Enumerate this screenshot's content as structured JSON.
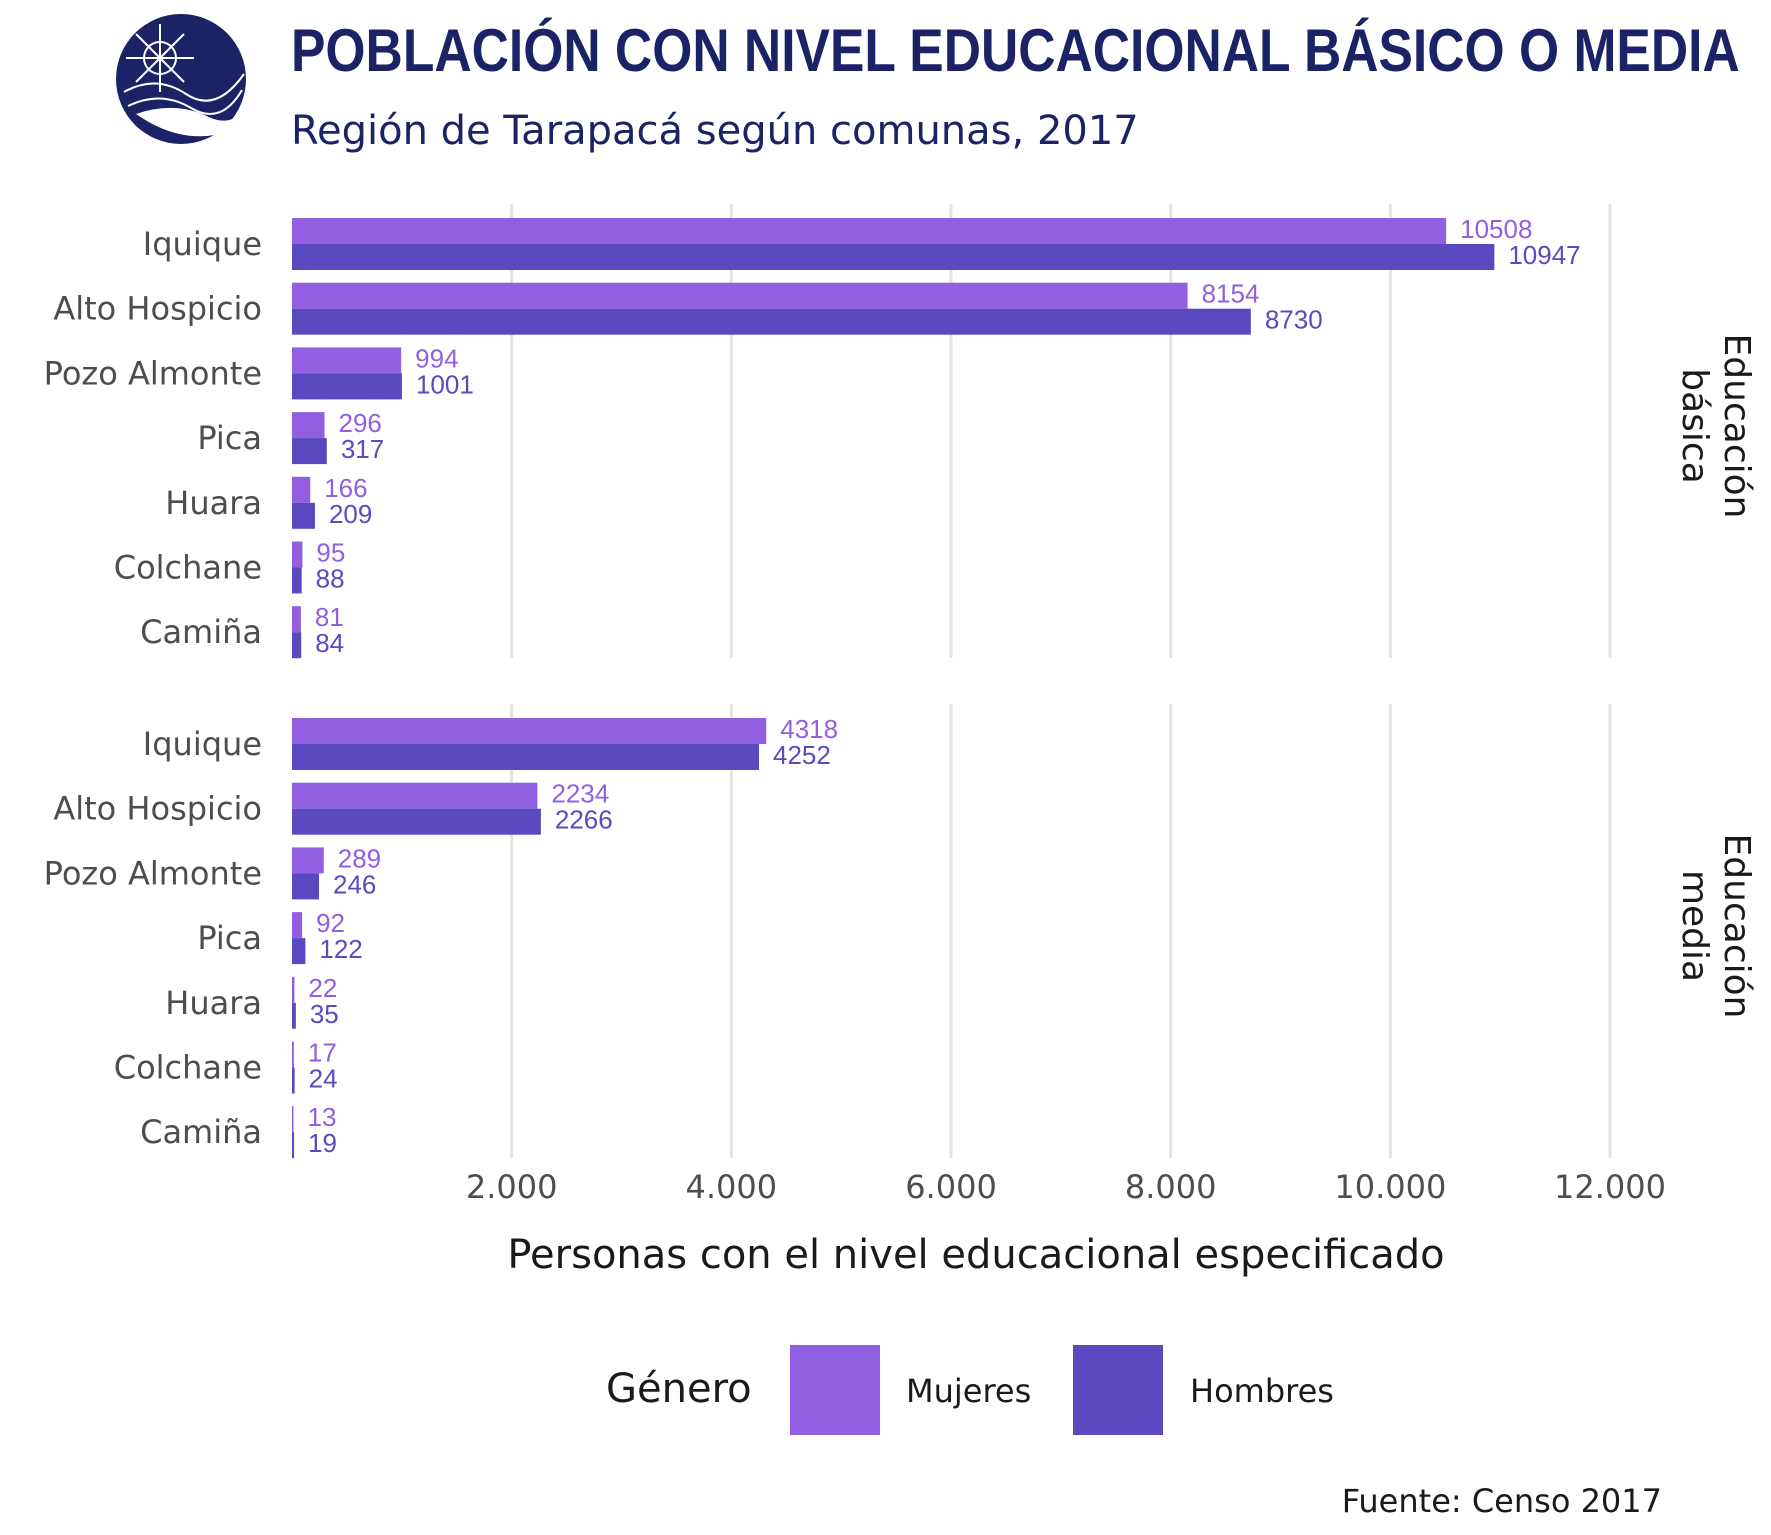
{
  "header": {
    "title": "POBLACIÓN CON NIVEL EDUCACIONAL BÁSICO O MEDIA",
    "subtitle": "Región de Tarapacá según comunas, 2017"
  },
  "colors": {
    "mujeres": "#9060e0",
    "hombres": "#5b4abf",
    "title": "#1b2366",
    "grid": "#e3e3e3"
  },
  "chart_data": {
    "type": "bar",
    "orientation": "horizontal",
    "title": "POBLACIÓN CON NIVEL EDUCACIONAL BÁSICO O MEDIA",
    "subtitle": "Región de Tarapacá según comunas, 2017",
    "xlabel": "Personas con el nivel educacional especificado",
    "ylabel": "",
    "xlim": [
      0,
      12500
    ],
    "xticks": [
      2000,
      4000,
      6000,
      8000,
      10000,
      12000
    ],
    "xtick_labels": [
      "2.000",
      "4.000",
      "6.000",
      "8.000",
      "10.000",
      "12.000"
    ],
    "grid": "vertical",
    "legend_title": "Género",
    "legend_position": "bottom",
    "caption": "Fuente: Censo 2017",
    "categories": [
      "Iquique",
      "Alto Hospicio",
      "Pozo Almonte",
      "Pica",
      "Huara",
      "Colchane",
      "Camiña"
    ],
    "facets": [
      {
        "label_lines": [
          "Educación",
          "básica"
        ],
        "series": [
          {
            "name": "Mujeres",
            "color": "#9060e0",
            "values": [
              10508,
              8154,
              994,
              296,
              166,
              95,
              81
            ]
          },
          {
            "name": "Hombres",
            "color": "#5b4abf",
            "values": [
              10947,
              8730,
              1001,
              317,
              209,
              88,
              84
            ]
          }
        ]
      },
      {
        "label_lines": [
          "Educación",
          "media"
        ],
        "series": [
          {
            "name": "Mujeres",
            "color": "#9060e0",
            "values": [
              4318,
              2234,
              289,
              92,
              22,
              17,
              13
            ]
          },
          {
            "name": "Hombres",
            "color": "#5b4abf",
            "values": [
              4252,
              2266,
              246,
              122,
              35,
              24,
              19
            ]
          }
        ]
      }
    ]
  }
}
